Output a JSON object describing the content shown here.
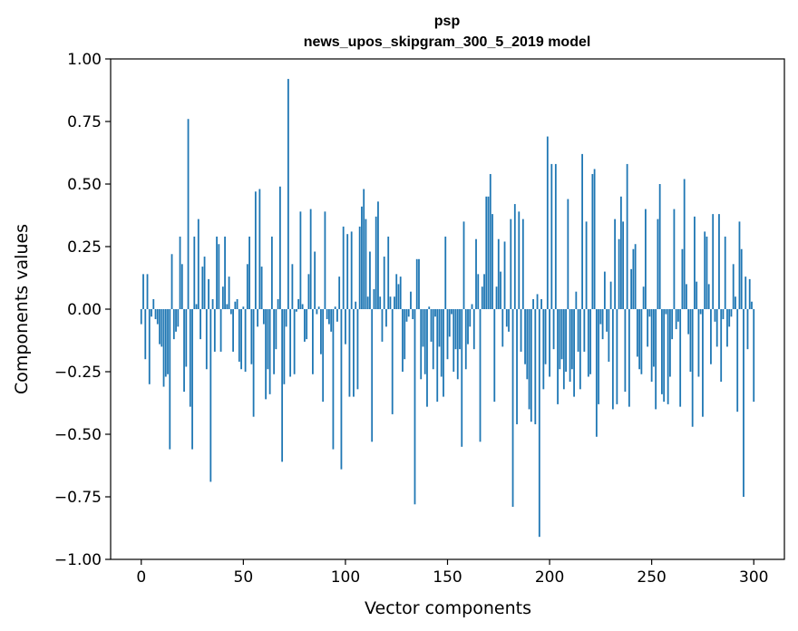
{
  "chart_data": {
    "type": "bar",
    "title": "psp",
    "subtitle": "news_upos_skipgram_300_5_2019 model",
    "xlabel": "Vector components",
    "ylabel": "Components values",
    "xlim": [
      -15,
      315
    ],
    "ylim": [
      -1.0,
      1.0
    ],
    "x_ticks": [
      0,
      50,
      100,
      150,
      200,
      250,
      300
    ],
    "x_tick_labels": [
      "0",
      "50",
      "100",
      "150",
      "200",
      "250",
      "300"
    ],
    "y_ticks": [
      1.0,
      0.75,
      0.5,
      0.25,
      0.0,
      -0.25,
      -0.5,
      -0.75,
      -1.0
    ],
    "y_tick_labels": [
      "1.00",
      "0.75",
      "0.50",
      "0.25",
      "0.00",
      "−0.25",
      "−0.50",
      "−0.75",
      "−1.00"
    ],
    "bar_color": "#1f77b4",
    "grid": false,
    "values": [
      -0.06,
      0.14,
      -0.2,
      0.14,
      -0.3,
      -0.03,
      0.04,
      -0.04,
      -0.06,
      -0.14,
      -0.15,
      -0.31,
      -0.27,
      -0.26,
      -0.56,
      0.22,
      -0.12,
      -0.09,
      -0.07,
      0.29,
      0.18,
      -0.33,
      -0.23,
      0.76,
      -0.39,
      -0.56,
      0.29,
      0.02,
      0.36,
      -0.12,
      0.17,
      0.21,
      -0.24,
      0.12,
      -0.69,
      0.04,
      -0.17,
      0.29,
      0.26,
      -0.17,
      0.09,
      0.29,
      0.02,
      0.13,
      -0.02,
      -0.17,
      0.03,
      0.04,
      -0.21,
      -0.24,
      0.01,
      -0.25,
      0.18,
      0.29,
      -0.22,
      -0.43,
      0.47,
      -0.07,
      0.48,
      0.17,
      -0.06,
      -0.36,
      -0.24,
      -0.34,
      0.29,
      -0.26,
      -0.16,
      0.04,
      0.49,
      -0.61,
      -0.3,
      -0.07,
      0.92,
      -0.27,
      0.18,
      -0.26,
      -0.01,
      0.04,
      0.39,
      0.02,
      -0.13,
      -0.12,
      0.14,
      0.4,
      -0.26,
      0.23,
      -0.02,
      0.01,
      -0.18,
      -0.37,
      0.39,
      -0.04,
      -0.06,
      -0.09,
      -0.56,
      0.01,
      -0.05,
      0.13,
      -0.64,
      0.33,
      -0.14,
      0.3,
      -0.35,
      0.31,
      -0.35,
      0.03,
      -0.32,
      0.33,
      0.41,
      0.48,
      0.36,
      0.05,
      0.23,
      -0.53,
      0.08,
      0.37,
      0.43,
      0.05,
      -0.13,
      0.21,
      -0.07,
      0.29,
      0.05,
      -0.42,
      0.05,
      0.14,
      0.1,
      0.13,
      -0.25,
      -0.2,
      -0.05,
      -0.03,
      0.07,
      -0.04,
      -0.78,
      0.2,
      0.2,
      -0.28,
      -0.15,
      -0.26,
      -0.39,
      0.01,
      -0.13,
      -0.24,
      -0.03,
      -0.37,
      -0.15,
      -0.27,
      -0.35,
      0.29,
      -0.2,
      -0.11,
      -0.02,
      -0.25,
      -0.16,
      -0.28,
      -0.16,
      -0.55,
      0.35,
      -0.24,
      -0.14,
      -0.07,
      0.02,
      -0.16,
      0.28,
      0.14,
      -0.53,
      0.09,
      0.14,
      0.45,
      0.45,
      0.54,
      0.38,
      -0.37,
      0.09,
      0.28,
      0.15,
      -0.15,
      0.27,
      -0.07,
      -0.09,
      0.36,
      -0.79,
      0.42,
      -0.46,
      0.39,
      -0.17,
      0.36,
      -0.22,
      -0.28,
      -0.4,
      -0.45,
      0.04,
      -0.46,
      0.06,
      -0.91,
      0.04,
      -0.32,
      -0.22,
      0.69,
      -0.27,
      0.58,
      -0.16,
      0.58,
      -0.38,
      -0.24,
      -0.2,
      -0.32,
      -0.25,
      0.44,
      -0.29,
      -0.24,
      -0.35,
      0.07,
      -0.17,
      -0.32,
      0.62,
      -0.17,
      0.35,
      -0.27,
      -0.26,
      0.54,
      0.56,
      -0.51,
      -0.38,
      -0.06,
      -0.12,
      0.15,
      -0.09,
      -0.21,
      0.11,
      -0.4,
      0.36,
      -0.38,
      0.28,
      0.45,
      0.35,
      -0.33,
      0.58,
      -0.39,
      0.16,
      0.24,
      0.26,
      -0.19,
      -0.24,
      -0.26,
      0.09,
      0.4,
      -0.15,
      -0.03,
      -0.29,
      -0.23,
      -0.4,
      0.36,
      0.5,
      -0.34,
      -0.37,
      -0.02,
      -0.38,
      -0.27,
      -0.12,
      0.4,
      -0.08,
      -0.05,
      -0.39,
      0.24,
      0.52,
      0.1,
      -0.1,
      -0.25,
      -0.47,
      0.37,
      0.11,
      -0.27,
      -0.02,
      -0.43,
      0.31,
      0.29,
      0.1,
      -0.22,
      0.38,
      -0.05,
      -0.15,
      0.38,
      -0.29,
      -0.04,
      0.29,
      -0.15,
      -0.07,
      -0.03,
      0.18,
      0.05,
      -0.41,
      0.35,
      0.24,
      -0.75,
      0.13,
      -0.16,
      0.12,
      0.03,
      -0.37
    ]
  }
}
